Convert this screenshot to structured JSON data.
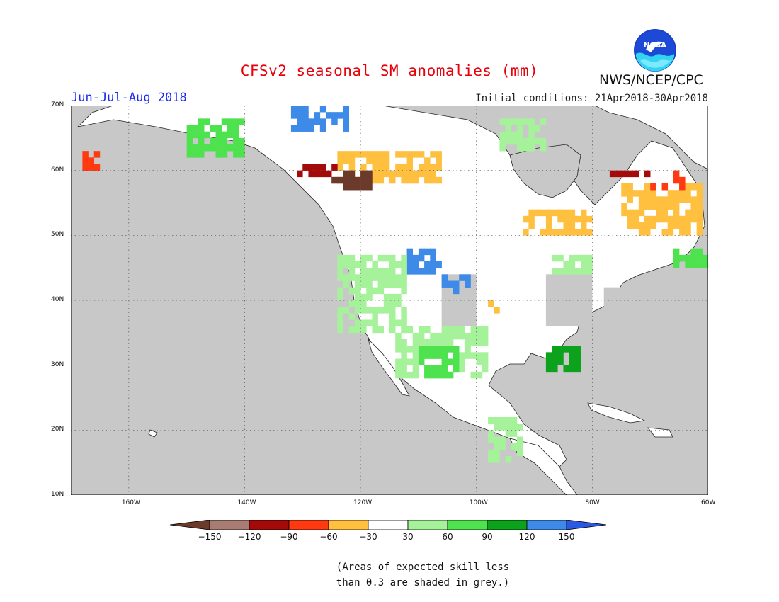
{
  "title": "CFSv2 seasonal SM anomalies (mm)",
  "agency": "NWS/NCEP/CPC",
  "logo_text": "NOAA",
  "season": "Jun-Jul-Aug 2018",
  "initial_conditions": "Initial conditions: 21Apr2018-30Apr2018",
  "axes": {
    "lon_range": [
      -170,
      -60
    ],
    "lat_range": [
      10,
      70
    ],
    "lon_ticks": [
      {
        "value": -160,
        "label": "160W"
      },
      {
        "value": -140,
        "label": "140W"
      },
      {
        "value": -120,
        "label": "120W"
      },
      {
        "value": -100,
        "label": "100W"
      },
      {
        "value": -80,
        "label": "80W"
      },
      {
        "value": -60,
        "label": "60W"
      }
    ],
    "lat_ticks": [
      {
        "value": 70,
        "label": "70N"
      },
      {
        "value": 60,
        "label": "60N"
      },
      {
        "value": 50,
        "label": "50N"
      },
      {
        "value": 40,
        "label": "40N"
      },
      {
        "value": 30,
        "label": "30N"
      },
      {
        "value": 20,
        "label": "20N"
      },
      {
        "value": 10,
        "label": "10N"
      }
    ],
    "grid": true
  },
  "colors": {
    "ocean": "#c8c8c8",
    "land": "#ffffff",
    "low_skill": "#c8c8c8"
  },
  "legend": {
    "bins": [
      {
        "color": "#6b3a2a",
        "kind": "arrow-left"
      },
      {
        "color": "#a87c72"
      },
      {
        "color": "#a50a0a"
      },
      {
        "color": "#ff3a10"
      },
      {
        "color": "#ffc040"
      },
      {
        "color": "#ffffff"
      },
      {
        "color": "#a6f29a"
      },
      {
        "color": "#4fe24f"
      },
      {
        "color": "#0ca21c"
      },
      {
        "color": "#3e8ae8"
      },
      {
        "color": "#2a58e0",
        "kind": "arrow-right"
      }
    ],
    "labels": [
      "−150",
      "−120",
      "−90",
      "−60",
      "−30",
      "30",
      "60",
      "90",
      "120",
      "150"
    ]
  },
  "note": [
    "(Areas of expected skill less",
    "than 0.3 are shaded in grey.)"
  ],
  "anomaly_regions": [
    {
      "category": "dry-30",
      "color": "#ffc040",
      "lon": [
        -124,
        -106
      ],
      "lat": [
        58,
        63
      ]
    },
    {
      "category": "dry-30",
      "color": "#ffc040",
      "lon": [
        -92,
        -79
      ],
      "lat": [
        50,
        54
      ]
    },
    {
      "category": "dry-30",
      "color": "#ffc040",
      "lon": [
        -75,
        -61
      ],
      "lat": [
        50,
        58
      ]
    },
    {
      "category": "dry-90",
      "color": "#ff3a10",
      "lon": [
        -70,
        -64
      ],
      "lat": [
        57,
        60
      ]
    },
    {
      "category": "dry-120",
      "color": "#a50a0a",
      "lon": [
        -77,
        -70
      ],
      "lat": [
        59,
        60
      ]
    },
    {
      "category": "dry-150",
      "color": "#6b3a2a",
      "lon": [
        -125,
        -118
      ],
      "lat": [
        57,
        60
      ]
    },
    {
      "category": "dry-120",
      "color": "#a50a0a",
      "lon": [
        -131,
        -124
      ],
      "lat": [
        59,
        61
      ]
    },
    {
      "category": "dry-90",
      "color": "#ff3a10",
      "lon": [
        -168,
        -165
      ],
      "lat": [
        60,
        63
      ]
    },
    {
      "category": "wet-150",
      "color": "#3e8ae8",
      "lon": [
        -132,
        -122
      ],
      "lat": [
        66,
        70
      ]
    },
    {
      "category": "wet-150",
      "color": "#3e8ae8",
      "lon": [
        -112,
        -106
      ],
      "lat": [
        44,
        48
      ]
    },
    {
      "category": "wet-150",
      "color": "#3e8ae8",
      "lon": [
        -106,
        -101
      ],
      "lat": [
        41,
        44
      ]
    },
    {
      "category": "wet-60",
      "color": "#a6f29a",
      "lon": [
        -124,
        -112
      ],
      "lat": [
        35,
        47
      ]
    },
    {
      "category": "wet-60",
      "color": "#a6f29a",
      "lon": [
        -114,
        -98
      ],
      "lat": [
        28,
        36
      ]
    },
    {
      "category": "wet-90",
      "color": "#4fe24f",
      "lon": [
        -110,
        -103
      ],
      "lat": [
        28,
        33
      ]
    },
    {
      "category": "wet-60",
      "color": "#a6f29a",
      "lon": [
        -98,
        -92
      ],
      "lat": [
        15,
        22
      ]
    },
    {
      "category": "wet-60",
      "color": "#a6f29a",
      "lon": [
        -87,
        -80
      ],
      "lat": [
        44,
        47
      ]
    },
    {
      "category": "wet-90",
      "color": "#4fe24f",
      "lon": [
        -150,
        -140
      ],
      "lat": [
        62,
        68
      ]
    },
    {
      "category": "wet-60",
      "color": "#a6f29a",
      "lon": [
        -96,
        -88
      ],
      "lat": [
        63,
        68
      ]
    },
    {
      "category": "dry-30",
      "color": "#ffc040",
      "lon": [
        -98,
        -95
      ],
      "lat": [
        38,
        40
      ]
    },
    {
      "category": "wet-120",
      "color": "#0ca21c",
      "lon": [
        -88,
        -82
      ],
      "lat": [
        29,
        33
      ]
    },
    {
      "category": "wet-90",
      "color": "#4fe24f",
      "lon": [
        -66,
        -60
      ],
      "lat": [
        45,
        48
      ]
    }
  ],
  "low_skill_regions": [
    {
      "lon": [
        -106,
        -100
      ],
      "lat": [
        36,
        44
      ]
    },
    {
      "lon": [
        -88,
        -80
      ],
      "lat": [
        36,
        44
      ]
    },
    {
      "lon": [
        -78,
        -72
      ],
      "lat": [
        38,
        42
      ]
    }
  ]
}
